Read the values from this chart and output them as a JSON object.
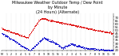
{
  "title": "Milwaukee Weather Outdoor Temp / Dew Point\nby Minute\n(24 Hours) (Alternate)",
  "title_fontsize": 3.5,
  "temp_color": "#dd0000",
  "dew_color": "#0000cc",
  "background_color": "#ffffff",
  "grid_color": "#999999",
  "ylim": [
    18,
    75
  ],
  "xlim": [
    0,
    1440
  ],
  "yticks": [
    20,
    25,
    30,
    35,
    40,
    45,
    50,
    55,
    60,
    65,
    70
  ],
  "xtick_labels": [
    "M",
    "1",
    "2",
    "3",
    "4",
    "5",
    "6",
    "7",
    "8",
    "9",
    "10",
    "11",
    "N",
    "1",
    "2",
    "3",
    "4",
    "5",
    "6",
    "7",
    "8",
    "9",
    "10",
    "11",
    "M"
  ],
  "xtick_positions": [
    0,
    60,
    120,
    180,
    240,
    300,
    360,
    420,
    480,
    540,
    600,
    660,
    720,
    780,
    840,
    900,
    960,
    1020,
    1080,
    1140,
    1200,
    1260,
    1320,
    1380,
    1440
  ],
  "vgrid_positions": [
    60,
    120,
    180,
    240,
    300,
    360,
    420,
    480,
    540,
    600,
    660,
    720,
    780,
    840,
    900,
    960,
    1020,
    1080,
    1140,
    1200,
    1260,
    1320,
    1380
  ]
}
